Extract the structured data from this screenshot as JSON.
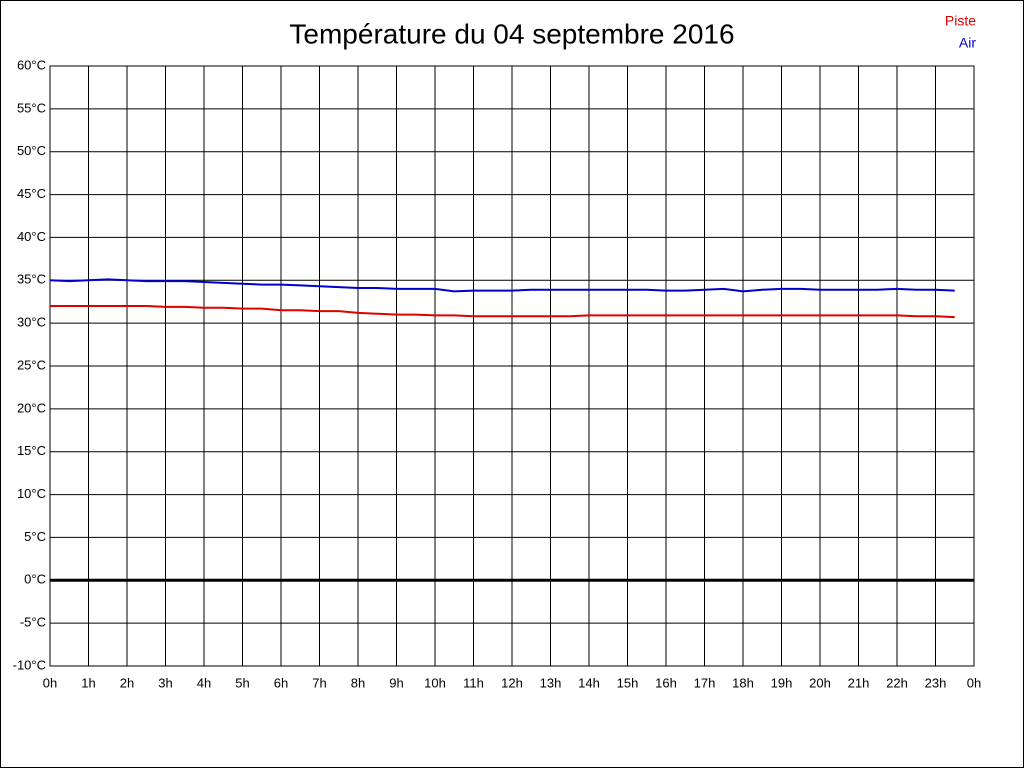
{
  "chart_data": {
    "type": "line",
    "title": "Température du 04 septembre 2016",
    "x": [
      0,
      0.5,
      1,
      1.5,
      2,
      2.5,
      3,
      3.5,
      4,
      4.5,
      5,
      5.5,
      6,
      6.5,
      7,
      7.5,
      8,
      8.5,
      9,
      9.5,
      10,
      10.5,
      11,
      11.5,
      12,
      12.5,
      13,
      13.5,
      14,
      14.5,
      15,
      15.5,
      16,
      16.5,
      17,
      17.5,
      18,
      18.5,
      19,
      19.5,
      20,
      20.5,
      21,
      21.5,
      22,
      22.5,
      23,
      23.5
    ],
    "series": [
      {
        "name": "Piste",
        "color": "#dd0000",
        "values": [
          32.0,
          32.0,
          32.0,
          32.0,
          32.0,
          32.0,
          31.9,
          31.9,
          31.8,
          31.8,
          31.7,
          31.7,
          31.5,
          31.5,
          31.4,
          31.4,
          31.2,
          31.1,
          31.0,
          31.0,
          30.9,
          30.9,
          30.8,
          30.8,
          30.8,
          30.8,
          30.8,
          30.8,
          30.9,
          30.9,
          30.9,
          30.9,
          30.9,
          30.9,
          30.9,
          30.9,
          30.9,
          30.9,
          30.9,
          30.9,
          30.9,
          30.9,
          30.9,
          30.9,
          30.9,
          30.8,
          30.8,
          30.7
        ]
      },
      {
        "name": "Air",
        "color": "#0000cc",
        "values": [
          35.0,
          34.9,
          35.0,
          35.1,
          35.0,
          34.9,
          34.9,
          34.9,
          34.8,
          34.7,
          34.6,
          34.5,
          34.5,
          34.4,
          34.3,
          34.2,
          34.1,
          34.1,
          34.0,
          34.0,
          34.0,
          33.7,
          33.8,
          33.8,
          33.8,
          33.9,
          33.9,
          33.9,
          33.9,
          33.9,
          33.9,
          33.9,
          33.8,
          33.8,
          33.9,
          34.0,
          33.7,
          33.9,
          34.0,
          34.0,
          33.9,
          33.9,
          33.9,
          33.9,
          34.0,
          33.9,
          33.9,
          33.8
        ]
      }
    ],
    "xlim": [
      0,
      24
    ],
    "xticks": [
      {
        "value": 0,
        "label": "0h"
      },
      {
        "value": 1,
        "label": "1h"
      },
      {
        "value": 2,
        "label": "2h"
      },
      {
        "value": 3,
        "label": "3h"
      },
      {
        "value": 4,
        "label": "4h"
      },
      {
        "value": 5,
        "label": "5h"
      },
      {
        "value": 6,
        "label": "6h"
      },
      {
        "value": 7,
        "label": "7h"
      },
      {
        "value": 8,
        "label": "8h"
      },
      {
        "value": 9,
        "label": "9h"
      },
      {
        "value": 10,
        "label": "10h"
      },
      {
        "value": 11,
        "label": "11h"
      },
      {
        "value": 12,
        "label": "12h"
      },
      {
        "value": 13,
        "label": "13h"
      },
      {
        "value": 14,
        "label": "14h"
      },
      {
        "value": 15,
        "label": "15h"
      },
      {
        "value": 16,
        "label": "16h"
      },
      {
        "value": 17,
        "label": "17h"
      },
      {
        "value": 18,
        "label": "18h"
      },
      {
        "value": 19,
        "label": "19h"
      },
      {
        "value": 20,
        "label": "20h"
      },
      {
        "value": 21,
        "label": "21h"
      },
      {
        "value": 22,
        "label": "22h"
      },
      {
        "value": 23,
        "label": "23h"
      },
      {
        "value": 24,
        "label": "0h"
      }
    ],
    "ylim": [
      -10,
      60
    ],
    "yticks": [
      {
        "value": -10,
        "label": "-10°C"
      },
      {
        "value": -5,
        "label": "-5°C"
      },
      {
        "value": 0,
        "label": "0°C"
      },
      {
        "value": 5,
        "label": "5°C"
      },
      {
        "value": 10,
        "label": "10°C"
      },
      {
        "value": 15,
        "label": "15°C"
      },
      {
        "value": 20,
        "label": "20°C"
      },
      {
        "value": 25,
        "label": "25°C"
      },
      {
        "value": 30,
        "label": "30°C"
      },
      {
        "value": 35,
        "label": "35°C"
      },
      {
        "value": 40,
        "label": "40°C"
      },
      {
        "value": 45,
        "label": "45°C"
      },
      {
        "value": 50,
        "label": "50°C"
      },
      {
        "value": 55,
        "label": "55°C"
      },
      {
        "value": 60,
        "label": "60°C"
      }
    ],
    "grid": true,
    "legend": "top-right"
  }
}
